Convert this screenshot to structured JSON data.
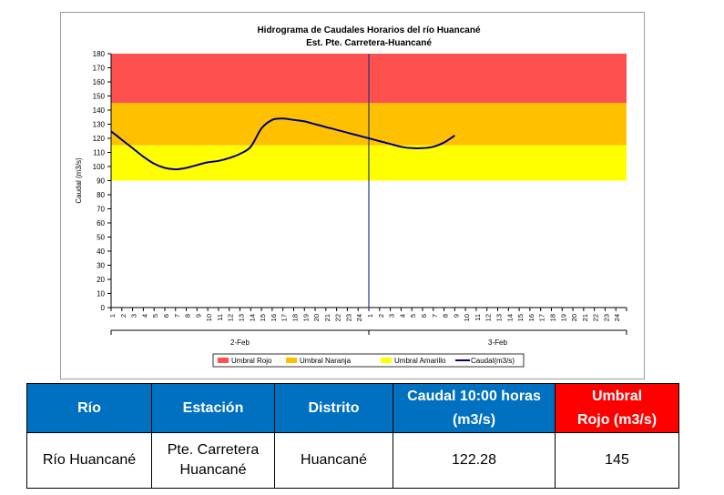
{
  "chart_data": {
    "type": "line",
    "title": "Hidrograma de Caudales Horarios del río Huancané",
    "subtitle": "Est. Pte. Carretera-Huancané",
    "ylabel": "Caudal  (m3/s)",
    "ylim": [
      0,
      180
    ],
    "yticks": [
      0,
      10,
      20,
      30,
      40,
      50,
      60,
      70,
      80,
      90,
      100,
      110,
      120,
      130,
      140,
      150,
      160,
      170,
      180
    ],
    "xticks": [
      "1",
      "2",
      "3",
      "4",
      "5",
      "6",
      "7",
      "8",
      "9",
      "10",
      "11",
      "12",
      "13",
      "14",
      "15",
      "16",
      "17",
      "18",
      "19",
      "20",
      "21",
      "22",
      "23",
      "24",
      "1",
      "2",
      "3",
      "4",
      "5",
      "6",
      "7",
      "8",
      "9",
      "10",
      "11",
      "12",
      "13",
      "14",
      "15",
      "16",
      "17",
      "18",
      "19",
      "20",
      "21",
      "22",
      "23",
      "24"
    ],
    "day_groups": [
      "2-Feb",
      "3-Feb"
    ],
    "thresholds": [
      {
        "name": "Umbral Rojo",
        "from": 145,
        "to": 180,
        "color": "#ff5050"
      },
      {
        "name": "Umbral Naranja",
        "from": 115,
        "to": 145,
        "color": "#ffc000"
      },
      {
        "name": "Umbral Amarillo",
        "from": 90,
        "to": 115,
        "color": "#ffff00"
      }
    ],
    "series": [
      {
        "name": "Caudal(m3/s)",
        "color": "#000080",
        "values": [
          125,
          119,
          113,
          107,
          102,
          99,
          98,
          99,
          101,
          103,
          104,
          106,
          109,
          114,
          127,
          133,
          134,
          133,
          132,
          130,
          128,
          126,
          124,
          122,
          120,
          118,
          116,
          114,
          113,
          113,
          114,
          117,
          122
        ]
      }
    ],
    "grid": false,
    "legend_position": "bottom"
  },
  "table": {
    "headers": [
      "Río",
      "Estación",
      "Distrito",
      "Caudal 10:00 horas\n(m3/s)",
      "Umbral\nRojo (m3/s)"
    ],
    "row": [
      "Río Huancané",
      "Pte. Carretera\nHuancané",
      "Huancané",
      "122.28",
      "145"
    ]
  }
}
